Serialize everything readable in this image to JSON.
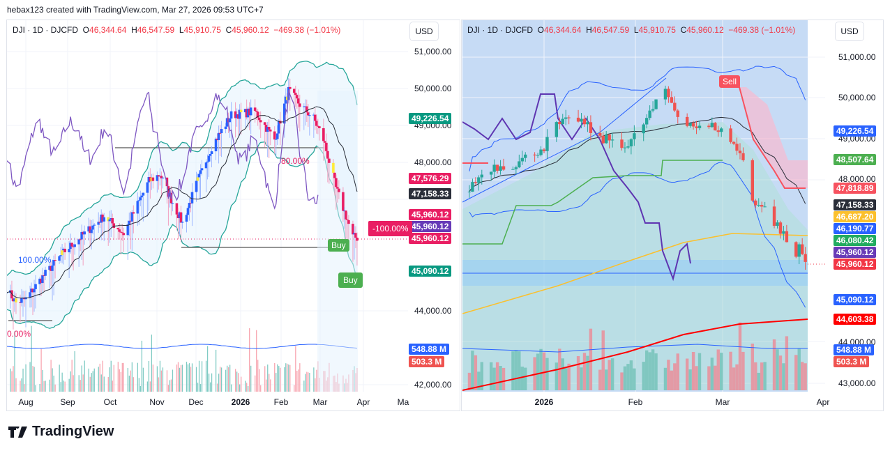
{
  "credit": "hebax123 created with TradingView.com, Mar 27, 2026 09:53 UTC+7",
  "legend": {
    "symbol": "DJI · 1D · DJCFD",
    "o_label": "O",
    "o": "46,344.64",
    "h_label": "H",
    "h": "46,547.59",
    "l_label": "L",
    "l": "45,910.75",
    "c_label": "C",
    "c": "45,960.12",
    "change": "−469.38 (−1.01%)"
  },
  "currency": "USD",
  "logo_text": "TradingView",
  "left": {
    "axis_ticks": [
      "51,000.00",
      "50,000.00",
      "49,000.00",
      "48,000.00",
      "44,000.00",
      "42,000.00"
    ],
    "tags": [
      {
        "value": "49,226.54",
        "color": "#089981"
      },
      {
        "value": "47,576.29",
        "color": "#e91e63"
      },
      {
        "value": "47,158.33",
        "color": "#2a2e39"
      },
      {
        "value": "45,960.12",
        "color": "#e91e63"
      },
      {
        "value": "45,960.12",
        "color": "#673ab7"
      },
      {
        "value": "45,960.12",
        "color": "#e91e63"
      },
      {
        "value": "45,090.12",
        "color": "#089981"
      },
      {
        "value": "548.88 M",
        "color": "#2962ff"
      },
      {
        "value": "503.3 M",
        "color": "#ef5350"
      }
    ],
    "time_labels": [
      "Aug",
      "Sep",
      "Oct",
      "Nov",
      "Dec",
      "2026",
      "Feb",
      "Mar",
      "Apr",
      "Ma"
    ],
    "annotations": {
      "pct_100": "100.00%",
      "pct_80": "80.00%",
      "pct_0": "0.00%",
      "pct_neg100": "-100.00%",
      "buy1": "Buy",
      "buy2": "Buy"
    }
  },
  "right": {
    "axis_ticks": [
      "51,000.00",
      "50,000.00",
      "49,000.00",
      "48,000.00",
      "44,000.00",
      "43,000.00"
    ],
    "tags": [
      {
        "value": "49,226.54",
        "color": "#2962ff"
      },
      {
        "value": "48,507.64",
        "color": "#4caf50"
      },
      {
        "value": "47,818.89",
        "color": "#f7525f"
      },
      {
        "value": "47,158.33",
        "color": "#2a2e39"
      },
      {
        "value": "46,687.20",
        "color": "#fbc02d"
      },
      {
        "value": "46,190.77",
        "color": "#2962ff"
      },
      {
        "value": "46,080.42",
        "color": "#22ab60"
      },
      {
        "value": "45,960.12",
        "color": "#673ab7"
      },
      {
        "value": "45,960.12",
        "color": "#f23645"
      },
      {
        "value": "45,090.12",
        "color": "#2962ff"
      },
      {
        "value": "44,603.38",
        "color": "#ff0000"
      },
      {
        "value": "548.88 M",
        "color": "#2962ff"
      },
      {
        "value": "503.3 M",
        "color": "#ef5350"
      }
    ],
    "time_labels": [
      "2026",
      "Feb",
      "Mar",
      "Apr"
    ],
    "annotations": {
      "sell": "Sell"
    }
  },
  "chart_data": [
    {
      "type": "candlestick",
      "title": "DJI · 1D · DJCFD",
      "ylabel": "USD",
      "ylim": [
        41800,
        51400
      ],
      "x_ticks": [
        "Aug",
        "Sep",
        "Oct",
        "Nov",
        "Dec",
        "2026",
        "Feb",
        "Mar",
        "Apr",
        "May"
      ],
      "close": [
        [
          "2025-07-18",
          44600
        ],
        [
          "2025-07-25",
          44200
        ],
        [
          "2025-08-01",
          44300
        ],
        [
          "2025-08-12",
          44850
        ],
        [
          "2025-08-29",
          45600
        ],
        [
          "2025-09-15",
          46170
        ],
        [
          "2025-09-26",
          46550
        ],
        [
          "2025-10-10",
          46075
        ],
        [
          "2025-10-28",
          47490
        ],
        [
          "2025-11-05",
          47680
        ],
        [
          "2025-11-14",
          46920
        ],
        [
          "2025-11-21",
          46360
        ],
        [
          "2025-12-01",
          47400
        ],
        [
          "2025-12-12",
          48430
        ],
        [
          "2025-12-26",
          49280
        ],
        [
          "2026-01-12",
          49380
        ],
        [
          "2026-01-26",
          48620
        ],
        [
          "2026-02-05",
          49940
        ],
        [
          "2026-02-13",
          49570
        ],
        [
          "2026-02-23",
          49190
        ],
        [
          "2026-03-02",
          48620
        ],
        [
          "2026-03-11",
          47300
        ],
        [
          "2026-03-18",
          46550
        ],
        [
          "2026-03-23",
          45980
        ],
        [
          "2026-03-26",
          45960
        ]
      ],
      "last": {
        "open": 46344.64,
        "high": 46547.59,
        "low": 45910.75,
        "close": 45960.12,
        "change": -469.38,
        "change_pct": -1.01
      },
      "indicators": {
        "bb_upper": 49226.54,
        "bb_basis": 47158.33,
        "bb_lower": 45090.12,
        "level": 47576.29,
        "volume": 548.88,
        "volume_ma": 503.3
      }
    },
    {
      "type": "candlestick",
      "title": "DJI · 1D · DJCFD",
      "ylabel": "USD",
      "ylim": [
        42800,
        51500
      ],
      "x_ticks": [
        "2026",
        "Feb",
        "Mar",
        "Apr"
      ],
      "close": [
        [
          "2025-12-06",
          47620
        ],
        [
          "2025-12-14",
          48300
        ],
        [
          "2025-12-23",
          48380
        ],
        [
          "2026-01-01",
          48810
        ],
        [
          "2026-01-05",
          49320
        ],
        [
          "2026-01-12",
          49500
        ],
        [
          "2026-01-19",
          48980
        ],
        [
          "2026-01-24",
          48980
        ],
        [
          "2026-01-28",
          48810
        ],
        [
          "2026-02-06",
          49840
        ],
        [
          "2026-02-09",
          50180
        ],
        [
          "2026-02-13",
          49580
        ],
        [
          "2026-02-20",
          49240
        ],
        [
          "2026-02-25",
          49300
        ],
        [
          "2026-03-02",
          48980
        ],
        [
          "2026-03-06",
          48470
        ],
        [
          "2026-03-09",
          47530
        ],
        [
          "2026-03-13",
          47270
        ],
        [
          "2026-03-18",
          46760
        ],
        [
          "2026-03-23",
          46080
        ],
        [
          "2026-03-24",
          46400
        ],
        [
          "2026-03-26",
          45960
        ]
      ],
      "indicators": {
        "bb_upper": 49226.54,
        "green_line": 48507.64,
        "stop_line": 47818.89,
        "basis": 47158.33,
        "ma_yellow": 46687.2,
        "blue_level": 46190.77,
        "green_level": 46080.42,
        "bb_lower": 45090.12,
        "ma_red": 44603.38,
        "volume": 548.88,
        "volume_ma": 503.3
      }
    }
  ],
  "colors": {
    "up": "#2962ff",
    "down": "#e91e63",
    "teal": "#26a69a",
    "red": "#ef5350"
  }
}
